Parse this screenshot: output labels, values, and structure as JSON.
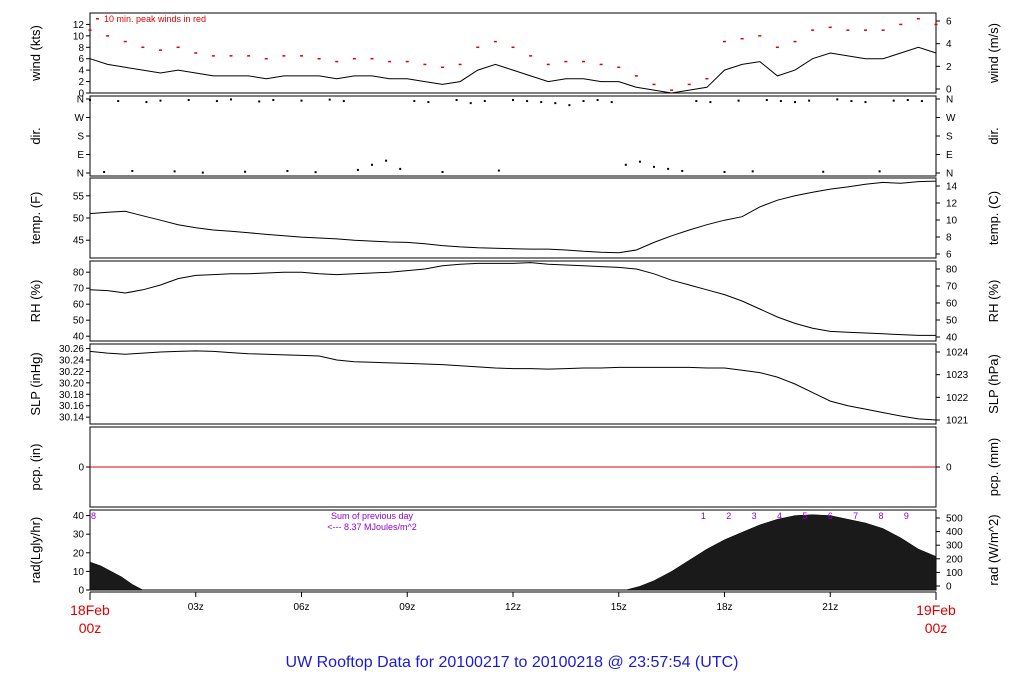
{
  "title": "UW Rooftop Data for 20100217  to  20100218 @ 23:57:54  (UTC)",
  "colors": {
    "line": "#000000",
    "peak": "#dd0000",
    "pcp": "#dd0000",
    "date": "#dd0000",
    "title": "#1a1adb",
    "ann": "#9400d3"
  },
  "xaxis": {
    "start_label": [
      "18Feb",
      "00z"
    ],
    "end_label": [
      "19Feb",
      "00z"
    ],
    "ticks": [
      "03z",
      "06z",
      "09z",
      "12z",
      "15z",
      "18z",
      "21z"
    ],
    "range_hours": [
      0,
      24
    ]
  },
  "chart_data": [
    {
      "type": "line",
      "name": "wind",
      "left_label": "wind (kts)",
      "right_label": "wind (m/s)",
      "left_ticks": [
        "0",
        "2",
        "4",
        "6",
        "8",
        "10",
        "12"
      ],
      "right_ticks": [
        "0",
        "2",
        "4",
        "6"
      ],
      "ylim": [
        0,
        14
      ],
      "legend": "10 min. peak winds in red",
      "series": [
        {
          "name": "wind",
          "x": [
            0,
            0.5,
            1,
            1.5,
            2,
            2.5,
            3,
            3.5,
            4,
            4.5,
            5,
            5.5,
            6,
            6.5,
            7,
            7.5,
            8,
            8.5,
            9,
            9.5,
            10,
            10.5,
            11,
            11.5,
            12,
            12.5,
            13,
            13.5,
            14,
            14.5,
            15,
            15.5,
            16,
            16.5,
            17,
            17.5,
            18,
            18.5,
            19,
            19.5,
            20,
            20.5,
            21,
            21.5,
            22,
            22.5,
            23,
            23.5,
            24
          ],
          "y": [
            6,
            5,
            4.5,
            4,
            3.5,
            4,
            3.5,
            3,
            3,
            3,
            2.5,
            3,
            3,
            3,
            2.5,
            3,
            3,
            2.5,
            2.5,
            2,
            1.5,
            2,
            4,
            5,
            4,
            3,
            2,
            2.5,
            2.5,
            2,
            2,
            1,
            0.5,
            0,
            0.5,
            1,
            4,
            5,
            5.5,
            3,
            4,
            6,
            7,
            6.5,
            6,
            6,
            7,
            8,
            7
          ]
        },
        {
          "name": "peak",
          "x": [
            0,
            0.5,
            1,
            1.5,
            2,
            2.5,
            3,
            3.5,
            4,
            4.5,
            5,
            5.5,
            6,
            6.5,
            7,
            7.5,
            8,
            8.5,
            9,
            9.5,
            10,
            10.5,
            11,
            11.5,
            12,
            12.5,
            13,
            13.5,
            14,
            14.5,
            15,
            15.5,
            16,
            16.5,
            17,
            17.5,
            18,
            18.5,
            19,
            19.5,
            20,
            20.5,
            21,
            21.5,
            22,
            22.5,
            23,
            23.5,
            24
          ],
          "y": [
            11,
            10,
            9,
            8,
            7.5,
            8,
            7,
            6.5,
            6.5,
            6.5,
            6,
            6.5,
            6.5,
            6,
            5.5,
            6,
            6,
            5.5,
            5.5,
            5,
            4.5,
            5,
            8,
            9,
            8,
            6.5,
            5,
            5.5,
            5.5,
            5,
            4.5,
            3,
            1.5,
            0.5,
            1.5,
            2.5,
            9,
            9.5,
            10,
            8,
            9,
            11,
            11.5,
            11,
            11,
            11,
            12,
            13,
            12
          ]
        }
      ]
    },
    {
      "type": "scatter",
      "name": "dir",
      "left_label": "dir.",
      "right_label": "dir.",
      "left_ticks": [
        "N",
        "E",
        "S",
        "W",
        "N"
      ],
      "right_ticks": [
        "N",
        "E",
        "S",
        "W",
        "N"
      ],
      "ylim": [
        0,
        360
      ],
      "series": [
        {
          "name": "dir",
          "x": [
            0,
            0.4,
            0.8,
            1.2,
            1.6,
            2,
            2.4,
            2.8,
            3.2,
            3.6,
            4,
            4.4,
            4.8,
            5.2,
            5.6,
            6,
            6.4,
            6.8,
            7.2,
            7.6,
            8,
            8.4,
            8.8,
            9.2,
            9.6,
            10,
            10.4,
            10.8,
            11.2,
            11.6,
            12,
            12.4,
            12.8,
            13.2,
            13.6,
            14,
            14.4,
            14.8,
            15.2,
            15.6,
            16,
            16.4,
            16.8,
            17.2,
            17.6,
            18,
            18.4,
            18.8,
            19.2,
            19.6,
            20,
            20.4,
            20.8,
            21.2,
            21.6,
            22,
            22.4,
            22.8,
            23.2,
            23.6
          ],
          "y": [
            355,
            5,
            350,
            10,
            345,
            352,
            8,
            355,
            2,
            350,
            358,
            6,
            348,
            355,
            10,
            352,
            4,
            357,
            350,
            15,
            40,
            60,
            20,
            350,
            345,
            5,
            355,
            340,
            350,
            12,
            355,
            350,
            345,
            340,
            330,
            350,
            355,
            345,
            40,
            55,
            30,
            20,
            10,
            350,
            345,
            5,
            352,
            8,
            355,
            350,
            345,
            352,
            6,
            358,
            350,
            345,
            8,
            352,
            355,
            350
          ]
        }
      ]
    },
    {
      "type": "line",
      "name": "temp",
      "left_label": "temp. (F)",
      "right_label": "temp. (C)",
      "left_ticks": [
        "45",
        "50",
        "55"
      ],
      "right_ticks": [
        "6",
        "8",
        "10",
        "12",
        "14"
      ],
      "ylim": [
        41,
        59
      ],
      "series": [
        {
          "name": "temp",
          "x": [
            0,
            0.5,
            1,
            1.5,
            2,
            2.5,
            3,
            3.5,
            4,
            4.5,
            5,
            5.5,
            6,
            6.5,
            7,
            7.5,
            8,
            8.5,
            9,
            9.5,
            10,
            10.5,
            11,
            11.5,
            12,
            12.5,
            13,
            13.5,
            14,
            14.5,
            15,
            15.5,
            16,
            16.5,
            17,
            17.5,
            18,
            18.5,
            19,
            19.5,
            20,
            20.5,
            21,
            21.5,
            22,
            22.5,
            23,
            23.5,
            24
          ],
          "y": [
            51,
            51.3,
            51.5,
            50.5,
            49.5,
            48.5,
            47.8,
            47.3,
            47,
            46.7,
            46.3,
            46,
            45.7,
            45.5,
            45.3,
            45,
            44.8,
            44.6,
            44.5,
            44.2,
            43.8,
            43.5,
            43.3,
            43.2,
            43.1,
            43,
            43,
            42.8,
            42.5,
            42.3,
            42.2,
            42.8,
            44.5,
            46,
            47.3,
            48.5,
            49.5,
            50.3,
            52.5,
            54,
            55,
            55.8,
            56.5,
            57,
            57.6,
            58,
            57.8,
            58.2,
            58.3
          ]
        }
      ]
    },
    {
      "type": "line",
      "name": "rh",
      "left_label": "RH (%)",
      "right_label": "RH (%)",
      "left_ticks": [
        "40",
        "50",
        "60",
        "70",
        "80"
      ],
      "right_ticks": [
        "40",
        "50",
        "60",
        "70",
        "80"
      ],
      "ylim": [
        37,
        87
      ],
      "series": [
        {
          "name": "rh",
          "x": [
            0,
            0.5,
            1,
            1.5,
            2,
            2.5,
            3,
            3.5,
            4,
            4.5,
            5,
            5.5,
            6,
            6.5,
            7,
            7.5,
            8,
            8.5,
            9,
            9.5,
            10,
            10.5,
            11,
            11.5,
            12,
            12.5,
            13,
            13.5,
            14,
            14.5,
            15,
            15.5,
            16,
            16.5,
            17,
            17.5,
            18,
            18.5,
            19,
            19.5,
            20,
            20.5,
            21,
            21.5,
            22,
            22.5,
            23,
            23.5,
            24
          ],
          "y": [
            69,
            68.5,
            67,
            69,
            72,
            76,
            78,
            78.5,
            79,
            79,
            79.5,
            80,
            80,
            79,
            78.5,
            79,
            79.5,
            80,
            81,
            82,
            84,
            85,
            85.5,
            85.5,
            85.5,
            86,
            85,
            84.5,
            84,
            83.5,
            83,
            82,
            79,
            75,
            72,
            69,
            66,
            62,
            57,
            52,
            48,
            45,
            43,
            42.5,
            42,
            41.5,
            41,
            40.5,
            40.5
          ]
        }
      ]
    },
    {
      "type": "line",
      "name": "slp",
      "left_label": "SLP (inHg)",
      "right_label": "SLP (hPa)",
      "left_ticks": [
        "30.14",
        "30.16",
        "30.18",
        "30.20",
        "30.22",
        "30.24",
        "30.26"
      ],
      "right_ticks": [
        "1021",
        "1022",
        "1023",
        "1024"
      ],
      "ylim": [
        30.128,
        30.268
      ],
      "series": [
        {
          "name": "slp",
          "x": [
            0,
            0.5,
            1,
            1.5,
            2,
            2.5,
            3,
            3.5,
            4,
            4.5,
            5,
            5.5,
            6,
            6.5,
            7,
            7.5,
            8,
            8.5,
            9,
            9.5,
            10,
            10.5,
            11,
            11.5,
            12,
            12.5,
            13,
            13.5,
            14,
            14.5,
            15,
            15.5,
            16,
            16.5,
            17,
            17.5,
            18,
            18.5,
            19,
            19.5,
            20,
            20.5,
            21,
            21.5,
            22,
            22.5,
            23,
            23.5,
            24
          ],
          "y": [
            30.255,
            30.252,
            30.25,
            30.252,
            30.254,
            30.255,
            30.256,
            30.255,
            30.253,
            30.251,
            30.25,
            30.249,
            30.248,
            30.247,
            30.24,
            30.237,
            30.236,
            30.235,
            30.234,
            30.233,
            30.232,
            30.23,
            30.228,
            30.226,
            30.225,
            30.225,
            30.224,
            30.225,
            30.226,
            30.226,
            30.227,
            30.227,
            30.227,
            30.227,
            30.227,
            30.226,
            30.226,
            30.222,
            30.218,
            30.21,
            30.198,
            30.183,
            30.168,
            30.16,
            30.154,
            30.148,
            30.142,
            30.137,
            30.135
          ]
        }
      ]
    },
    {
      "type": "line",
      "name": "pcp",
      "left_label": "pcp. (in)",
      "right_label": "pcp. (mm)",
      "left_ticks": [
        "0"
      ],
      "right_ticks": [
        "0"
      ],
      "ylim": [
        -1,
        1
      ],
      "series": [
        {
          "name": "pcp",
          "x": [
            0,
            24
          ],
          "y": [
            0,
            0
          ]
        }
      ]
    },
    {
      "type": "area",
      "name": "rad",
      "left_label": "rad(Lgly/hr)",
      "right_label": "rad (W/m^2)",
      "left_ticks": [
        "0",
        "10",
        "20",
        "30",
        "40"
      ],
      "right_ticks": [
        "0",
        "100",
        "200",
        "300",
        "400",
        "500"
      ],
      "ylim": [
        0,
        43
      ],
      "annotations": {
        "left_marker": "8",
        "sum_line1": "Sum of previous day",
        "sum_line2": "<--- 8.37 MJoules/m^2",
        "hour_marks": [
          "1",
          "2",
          "3",
          "4",
          "5",
          "6",
          "7",
          "8",
          "9"
        ]
      },
      "series": [
        {
          "name": "rad",
          "x": [
            0,
            0.3,
            0.6,
            0.9,
            1.2,
            1.5,
            15.2,
            15.6,
            16,
            16.5,
            17,
            17.5,
            18,
            18.5,
            19,
            19.5,
            20,
            20.5,
            21,
            21.5,
            22,
            22.5,
            23,
            23.5,
            24
          ],
          "y": [
            15,
            13,
            10,
            7,
            3,
            0,
            0,
            2,
            5,
            10,
            16,
            22,
            27,
            31,
            35,
            38,
            40,
            40.5,
            40,
            38,
            36,
            33,
            28,
            22,
            18
          ]
        }
      ]
    }
  ]
}
